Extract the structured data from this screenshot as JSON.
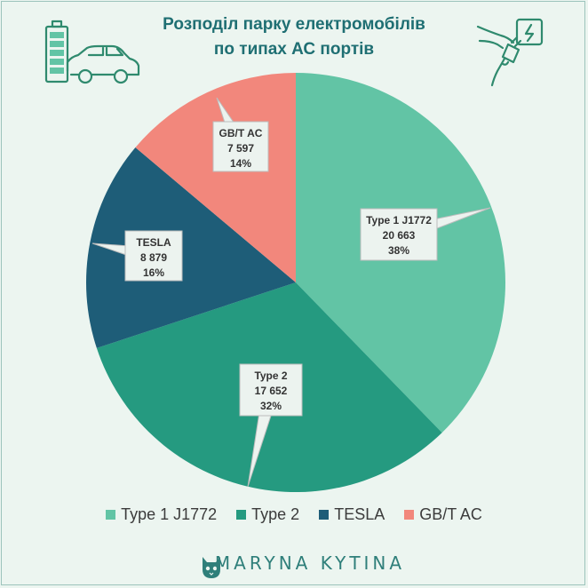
{
  "chart_data": {
    "type": "pie",
    "title_lines": [
      "Розподіл парку електромобілів",
      "по типах АС портів"
    ],
    "start_angle_deg": 0,
    "slices": [
      {
        "name": "Type 1 J1772",
        "value": 20663,
        "value_label": "20 663",
        "percent_label": "38%",
        "color": "#62c4a5"
      },
      {
        "name": "Type 2",
        "value": 17652,
        "value_label": "17 652",
        "percent_label": "32%",
        "color": "#259a80"
      },
      {
        "name": "TESLA",
        "value": 8879,
        "value_label": "8 879",
        "percent_label": "16%",
        "color": "#1e5d78"
      },
      {
        "name": "GB/T AC",
        "value": 7597,
        "value_label": "7 597",
        "percent_label": "14%",
        "color": "#f2877c"
      }
    ],
    "legend_position": "bottom"
  },
  "icons": {
    "left": "battery-car-icon",
    "right": "ev-charger-plug-icon",
    "footer": "cat-logo-icon"
  },
  "footer": {
    "brand": "MARYNA KYTINA"
  },
  "colors": {
    "title": "#1f6f73",
    "icon_stroke": "#2f8a6e",
    "background": "#ecf5f0"
  }
}
